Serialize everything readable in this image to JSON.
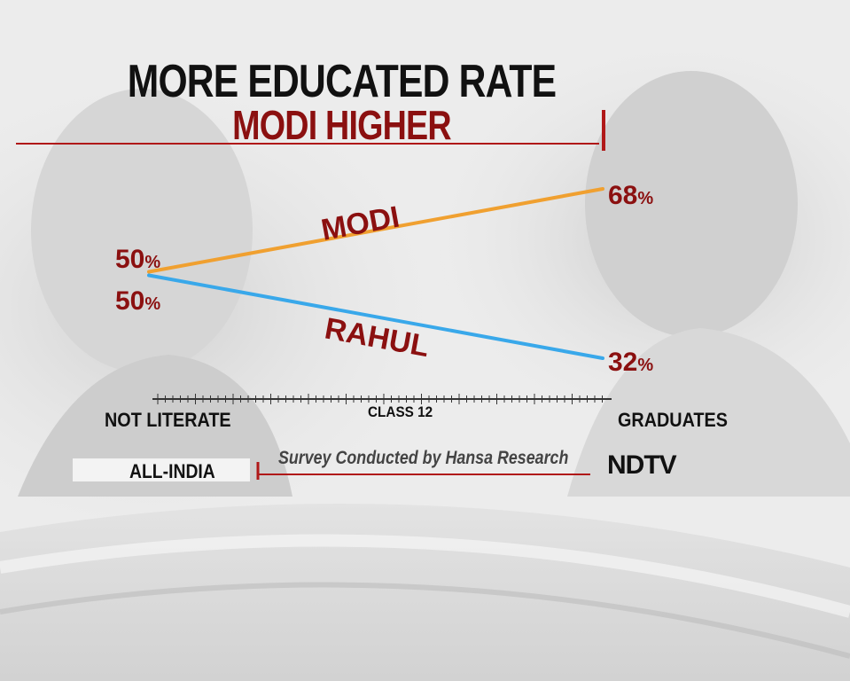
{
  "title": "MORE EDUCATED RATE",
  "subtitle": "MODI HIGHER",
  "footer": {
    "scope": "ALL-INDIA",
    "source": "Survey Conducted by Hansa Research",
    "logo": "NDTV"
  },
  "colors": {
    "modi_line": "#f0a030",
    "rahul_line": "#39a8ea",
    "label_red": "#8b1010",
    "rule_red": "#b01818"
  },
  "chart_data": {
    "type": "line",
    "title": "MORE EDUCATED RATE",
    "subtitle": "MODI HIGHER",
    "x": [
      "NOT LITERATE",
      "GRADUATES"
    ],
    "x_mid_label": "CLASS 12",
    "ylim": [
      0,
      100
    ],
    "grid": false,
    "series": [
      {
        "name": "MODI",
        "values": [
          50,
          68
        ],
        "value_labels": [
          "50",
          "68"
        ],
        "unit": "%"
      },
      {
        "name": "RAHUL",
        "values": [
          50,
          32
        ],
        "value_labels": [
          "50",
          "32"
        ],
        "unit": "%"
      }
    ]
  }
}
